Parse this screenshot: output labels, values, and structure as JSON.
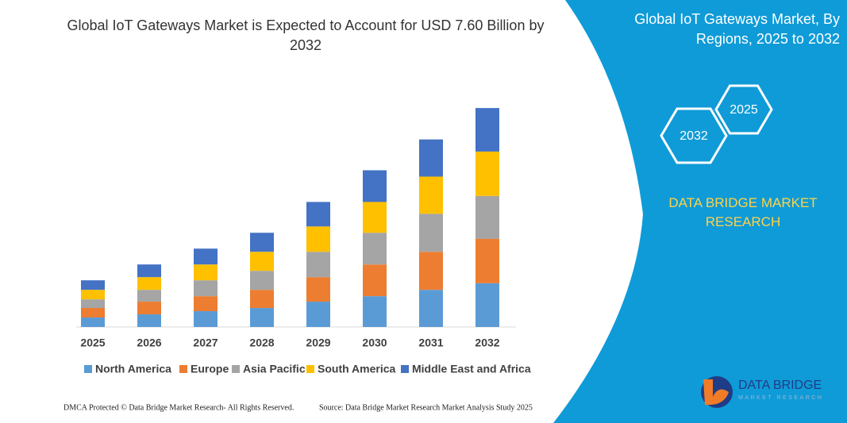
{
  "chart_data": {
    "type": "bar",
    "stacked": true,
    "title": "Global IoT Gateways Market is Expected to Account for USD 7.60 Billion by 2032",
    "categories": [
      "2025",
      "2026",
      "2027",
      "2028",
      "2029",
      "2030",
      "2031",
      "2032"
    ],
    "series": [
      {
        "name": "North America",
        "color": "#5b9bd5",
        "values": [
          0.33,
          0.44,
          0.55,
          0.66,
          0.88,
          1.07,
          1.29,
          1.52
        ]
      },
      {
        "name": "Europe",
        "color": "#ed7d31",
        "values": [
          0.33,
          0.44,
          0.52,
          0.63,
          0.85,
          1.1,
          1.32,
          1.54
        ]
      },
      {
        "name": "Asia Pacific",
        "color": "#a5a5a5",
        "values": [
          0.3,
          0.41,
          0.55,
          0.66,
          0.88,
          1.1,
          1.32,
          1.49
        ]
      },
      {
        "name": "South America",
        "color": "#ffc000",
        "values": [
          0.33,
          0.44,
          0.55,
          0.66,
          0.88,
          1.07,
          1.29,
          1.54
        ]
      },
      {
        "name": "Middle East and Africa",
        "color": "#4472c4",
        "values": [
          0.33,
          0.44,
          0.55,
          0.66,
          0.85,
          1.1,
          1.29,
          1.51
        ]
      }
    ]
  },
  "panel": {
    "title": "Global IoT Gateways Market, By Regions, 2025 to 2032",
    "hex_top": "2025",
    "hex_bottom": "2032",
    "brand": "DATA BRIDGE MARKET RESEARCH",
    "logo_name": "DATA BRIDGE",
    "logo_sub": "MARKET RESEARCH"
  },
  "footer": {
    "left": "DMCA Protected © Data Bridge Market Research- All Rights Reserved.",
    "right": "Source: Data Bridge Market Research Market Analysis Study 2025"
  }
}
